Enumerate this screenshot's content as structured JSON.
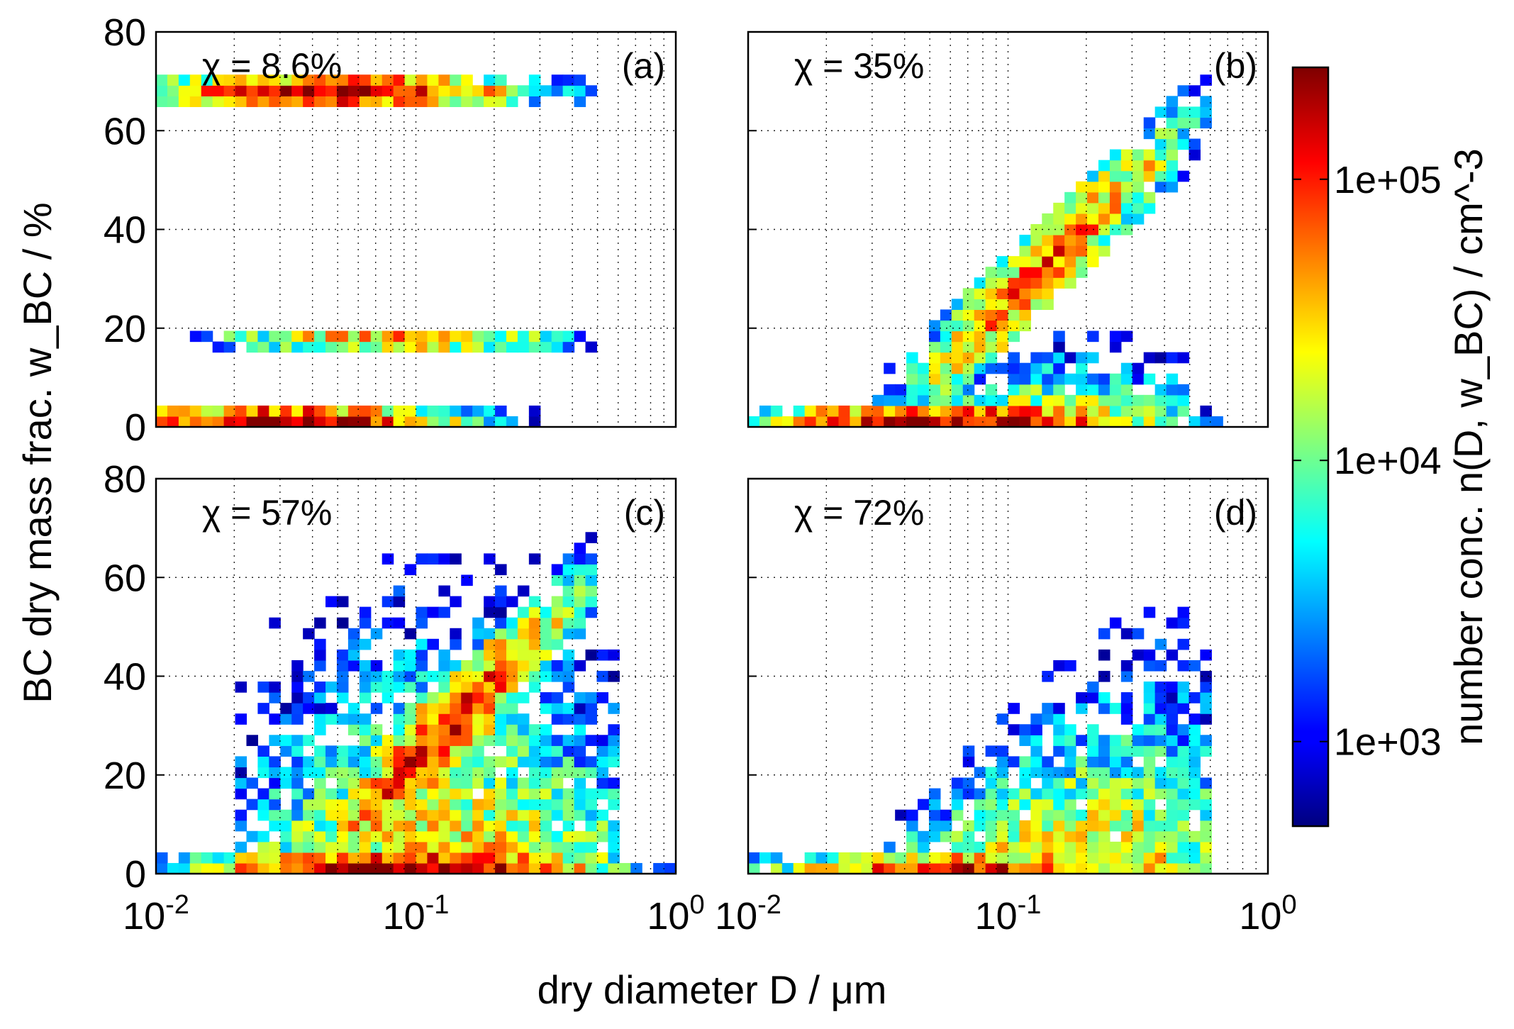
{
  "chart_data": {
    "type": "heatmap",
    "xlabel": "dry diameter  D  / μm",
    "ylabel": "BC dry mass frac.  w_BC / %",
    "x_scale": "log",
    "xlim": [
      0.01,
      1
    ],
    "ylim": [
      0,
      80
    ],
    "x_ticks": [
      0.01,
      0.1,
      1
    ],
    "x_tick_labels": [
      "10",
      "10",
      "10"
    ],
    "x_tick_exponents": [
      "-2",
      "-1",
      "0"
    ],
    "x_tick_exponents_shared": [
      "-2",
      "-1",
      "0"
    ],
    "y_ticks": [
      0,
      20,
      40,
      60,
      80
    ],
    "y_tick_labels": [
      "0",
      "20",
      "40",
      "60",
      "80"
    ],
    "grid": true,
    "colorbar": {
      "label": "number conc.  n(D, w_BC)  / cm^-3",
      "scale": "log",
      "range": [
        500,
        250000
      ],
      "colormap": "jet",
      "ticks": [
        1000,
        10000,
        100000
      ],
      "tick_labels": [
        "1e+03",
        "1e+04",
        "1e+05"
      ]
    },
    "panels": [
      {
        "label": "(a)",
        "annotation": "χ = 8.6%",
        "features": [
          {
            "kind": "horizontal_band",
            "w_BC": 1,
            "D_range": [
              0.01,
              1
            ],
            "peak_D": 0.03,
            "peak_log10_n": 5.2
          },
          {
            "kind": "horizontal_band",
            "w_BC": 18,
            "D_range": [
              0.012,
              0.6
            ],
            "peak_D": 0.08,
            "peak_log10_n": 4.6
          },
          {
            "kind": "horizontal_band",
            "w_BC": 68,
            "D_range": [
              0.01,
              0.8
            ],
            "peak_D": 0.05,
            "peak_log10_n": 5.2
          }
        ]
      },
      {
        "label": "(b)",
        "annotation": "χ = 35%",
        "features": [
          {
            "kind": "horizontal_band",
            "w_BC": 1,
            "D_range": [
              0.01,
              1
            ],
            "peak_D": 0.06,
            "peak_log10_n": 5.3
          },
          {
            "kind": "diagonal_band",
            "D_range": [
              0.04,
              0.6
            ],
            "w_BC_range": [
              5,
              65
            ],
            "peak_log10_n": 4.9
          },
          {
            "kind": "cloud",
            "D_range": [
              0.03,
              0.5
            ],
            "w_BC_range": [
              3,
              20
            ],
            "peak_log10_n": 4.6
          }
        ]
      },
      {
        "label": "(c)",
        "annotation": "χ = 57%",
        "features": [
          {
            "kind": "horizontal_band",
            "w_BC": 1,
            "D_range": [
              0.01,
              1
            ],
            "peak_D": 0.09,
            "peak_log10_n": 5.4
          },
          {
            "kind": "diagonal_band",
            "D_range": [
              0.04,
              0.5
            ],
            "w_BC_range": [
              2,
              60
            ],
            "peak_log10_n": 5.1
          },
          {
            "kind": "cloud",
            "D_range": [
              0.02,
              0.6
            ],
            "w_BC_range": [
              2,
              65
            ],
            "peak_log10_n": 4.6
          }
        ]
      },
      {
        "label": "(d)",
        "annotation": "χ = 72%",
        "features": [
          {
            "kind": "horizontal_band",
            "w_BC": 1,
            "D_range": [
              0.01,
              1
            ],
            "peak_D": 0.07,
            "peak_log10_n": 5.0
          },
          {
            "kind": "wedge",
            "D_range": [
              0.025,
              0.6
            ],
            "w_BC_range": [
              1,
              55
            ],
            "peak_log10_n": 4.7
          }
        ]
      }
    ]
  }
}
